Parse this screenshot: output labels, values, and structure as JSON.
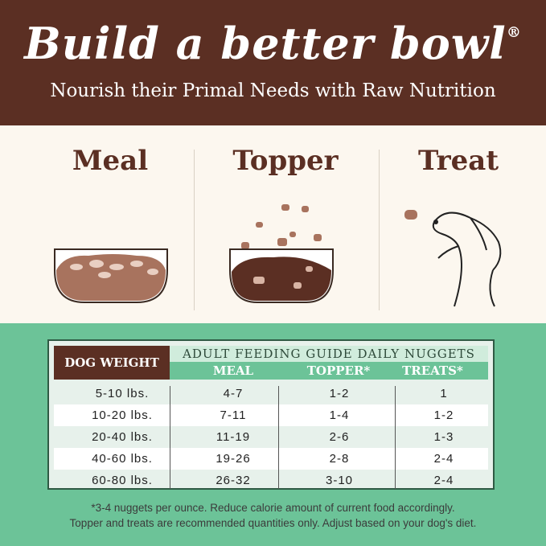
{
  "header": {
    "title": "Build a better bowl",
    "registered": "®",
    "subtitle": "Nourish their Primal Needs with Raw Nutrition"
  },
  "uses": [
    {
      "label": "Meal"
    },
    {
      "label": "Topper"
    },
    {
      "label": "Treat"
    }
  ],
  "table": {
    "row_header": "DOG WEIGHT",
    "group_header": "ADULT FEEDING GUIDE DAILY NUGGETS",
    "columns": [
      "MEAL",
      "TOPPER*",
      "TREATS*"
    ],
    "rows": [
      {
        "weight": "5-10 lbs.",
        "meal": "4-7",
        "topper": "1-2",
        "treats": "1"
      },
      {
        "weight": "10-20 lbs.",
        "meal": "7-11",
        "topper": "1-4",
        "treats": "1-2"
      },
      {
        "weight": "20-40 lbs.",
        "meal": "11-19",
        "topper": "2-6",
        "treats": "1-3"
      },
      {
        "weight": "40-60 lbs.",
        "meal": "19-26",
        "topper": "2-8",
        "treats": "2-4"
      },
      {
        "weight": "60-80 lbs.",
        "meal": "26-32",
        "topper": "3-10",
        "treats": "2-4"
      }
    ]
  },
  "footnote": [
    "*3-4 nuggets per ounce. Reduce calorie amount of current food accordingly.",
    "Topper and treats are recommended quantities only. Adjust based on your dog's diet."
  ],
  "colors": {
    "brown": "#5b2f23",
    "green": "#6cc398",
    "cream": "#fcf7ef"
  }
}
